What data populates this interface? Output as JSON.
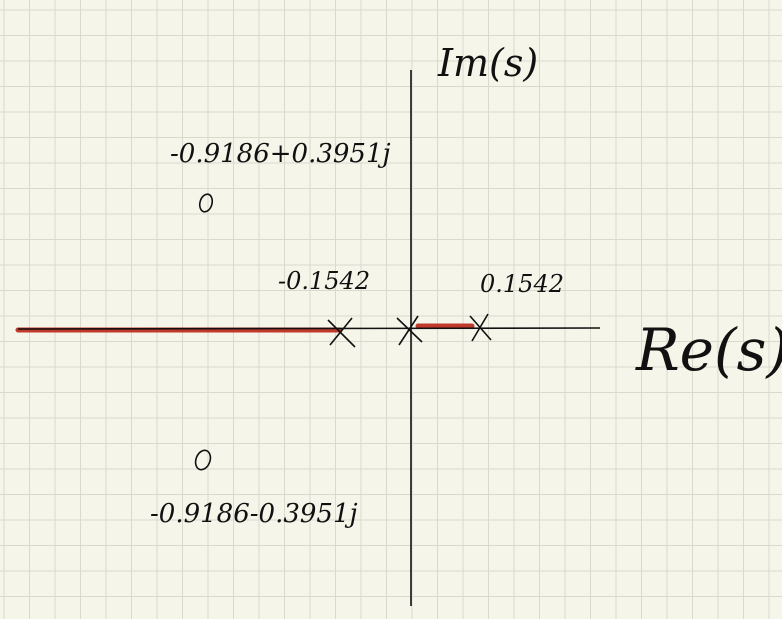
{
  "axes": {
    "imag_label": "Im(s)",
    "real_label": "Re(s)"
  },
  "poles": [
    {
      "label": "-0.1542"
    },
    {
      "label": ""
    },
    {
      "label": "0.1542"
    }
  ],
  "zeros": [
    {
      "label": "-0.9186+0.3951j"
    },
    {
      "label": "-0.9186-0.3951j"
    }
  ],
  "root_locus": {
    "color": "#c0392b",
    "segments": [
      "left of -0.1542 to -infinity",
      "0 to 0.1542"
    ]
  },
  "colors": {
    "grid": "#d9d9cc",
    "ink": "#111111"
  }
}
